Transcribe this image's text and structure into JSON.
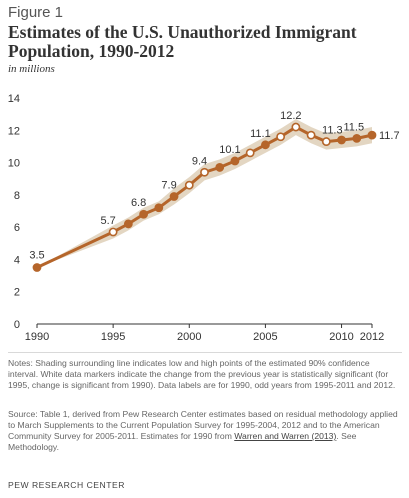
{
  "figure_label": "Figure 1",
  "title": "Estimates of the U.S. Unauthorized Immigrant Population, 1990-2012",
  "subtitle": "in millions",
  "notes": "Notes: Shading surrounding line indicates low and high points of the estimated 90% confidence interval. White data markers indicate the change from the previous year is statistically significant (for 1995, change is significant from 1990). Data labels are for 1990, odd years from 1995-2011 and 2012.",
  "source_prefix": "Source: Table 1, derived from Pew Research Center estimates based on residual methodology applied to March Supplements to the Current Population Survey for 1995-2004, 2012 and to the American Community Survey for 2005-2011. Estimates for 1990 from ",
  "source_link": "Warren and Warren (2013)",
  "source_suffix": ". See Methodology.",
  "brand": "PEW RESEARCH CENTER",
  "colors": {
    "line": "#b5652a",
    "band": "#e3d6c2",
    "axis": "#333333",
    "text": "#333333"
  },
  "chart_data": {
    "type": "line",
    "title": "Estimates of the U.S. Unauthorized Immigrant Population, 1990-2012",
    "ylabel": "in millions",
    "xlim": [
      1990,
      2012
    ],
    "ylim": [
      0,
      14
    ],
    "y_ticks": [
      0,
      2,
      4,
      6,
      8,
      10,
      12,
      14
    ],
    "x_ticks": [
      1990,
      1995,
      2000,
      2005,
      2010,
      2012
    ],
    "grid": false,
    "legend": "none",
    "series": [
      {
        "points": [
          {
            "x": 1990,
            "y": 3.5,
            "marker": "filled",
            "label": "3.5"
          },
          {
            "x": 1995,
            "y": 5.7,
            "marker": "open",
            "label": "5.7"
          },
          {
            "x": 1996,
            "y": 6.2,
            "marker": "filled"
          },
          {
            "x": 1997,
            "y": 6.8,
            "marker": "filled",
            "label": "6.8"
          },
          {
            "x": 1998,
            "y": 7.2,
            "marker": "filled"
          },
          {
            "x": 1999,
            "y": 7.9,
            "marker": "filled",
            "label": "7.9"
          },
          {
            "x": 2000,
            "y": 8.6,
            "marker": "open"
          },
          {
            "x": 2001,
            "y": 9.4,
            "marker": "open",
            "label": "9.4"
          },
          {
            "x": 2002,
            "y": 9.7,
            "marker": "filled"
          },
          {
            "x": 2003,
            "y": 10.1,
            "marker": "filled",
            "label": "10.1"
          },
          {
            "x": 2004,
            "y": 10.6,
            "marker": "open"
          },
          {
            "x": 2005,
            "y": 11.1,
            "marker": "filled",
            "label": "11.1"
          },
          {
            "x": 2006,
            "y": 11.6,
            "marker": "open"
          },
          {
            "x": 2007,
            "y": 12.2,
            "marker": "open",
            "label": "12.2"
          },
          {
            "x": 2008,
            "y": 11.7,
            "marker": "open"
          },
          {
            "x": 2009,
            "y": 11.3,
            "marker": "open",
            "label": "11.3"
          },
          {
            "x": 2010,
            "y": 11.4,
            "marker": "filled"
          },
          {
            "x": 2011,
            "y": 11.5,
            "marker": "filled",
            "label": "11.5"
          },
          {
            "x": 2012,
            "y": 11.7,
            "marker": "filled",
            "label": "11.7"
          }
        ],
        "band_low": [
          3.5,
          5.3,
          5.8,
          6.4,
          6.8,
          7.4,
          8.1,
          8.9,
          9.2,
          9.6,
          10.1,
          10.6,
          11.1,
          11.7,
          11.2,
          10.8,
          10.9,
          11.0,
          11.2
        ],
        "band_high": [
          3.5,
          6.1,
          6.6,
          7.2,
          7.6,
          8.4,
          9.1,
          9.9,
          10.2,
          10.6,
          11.1,
          11.6,
          12.1,
          12.7,
          12.2,
          11.8,
          11.9,
          12.0,
          12.2
        ]
      }
    ]
  }
}
